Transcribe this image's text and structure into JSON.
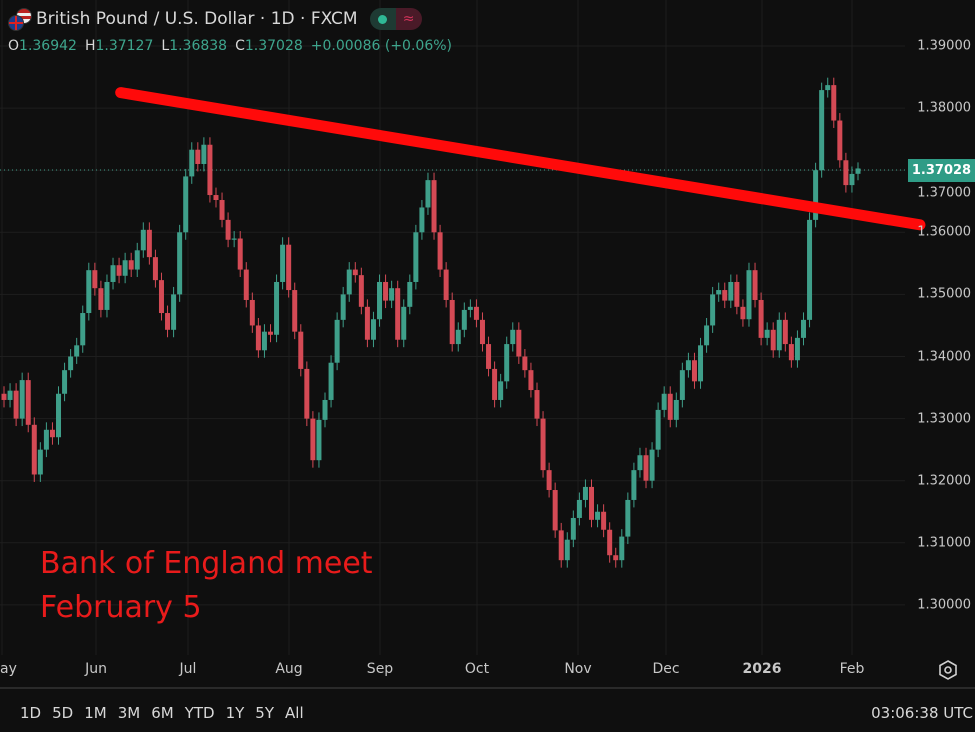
{
  "header": {
    "title": "British Pound / U.S. Dollar · 1D · FXCM",
    "ohlc": {
      "o_label": "O",
      "o": "1.36942",
      "h_label": "H",
      "h": "1.37127",
      "l_label": "L",
      "l": "1.36838",
      "c_label": "C",
      "c": "1.37028",
      "change": "+0.00086 (+0.06%)"
    },
    "market_status_icon": "green-dot",
    "indicator_icon": "wave-icon"
  },
  "annotation": {
    "line1": "Bank of England meet",
    "line2": "February 5"
  },
  "current_price_label": "1.37028",
  "range_buttons": [
    "1D",
    "5D",
    "1M",
    "3M",
    "6M",
    "YTD",
    "1Y",
    "5Y",
    "All"
  ],
  "clock": "03:06:38 UTC",
  "colors": {
    "up": "#3f9f8a",
    "down": "#d44a55",
    "trendline": "#ff0a0a",
    "annotation": "#e81b1b",
    "price_label": "#2f9c86",
    "background": "#0f0f0f"
  },
  "chart_data": {
    "type": "candlestick",
    "symbol": "GBPUSD",
    "interval": "1D",
    "x_ticks": [
      "ay",
      "Jun",
      "Jul",
      "Aug",
      "Sep",
      "Oct",
      "Nov",
      "Dec",
      "2026",
      "Feb"
    ],
    "y_ticks": [
      "1.39000",
      "1.38000",
      "1.37000",
      "1.36000",
      "1.35000",
      "1.34000",
      "1.33000",
      "1.32000",
      "1.31000",
      "1.30000"
    ],
    "ylim": [
      1.2985,
      1.3925
    ],
    "grid": true,
    "closes": [
      1.333,
      1.3345,
      1.33,
      1.3362,
      1.329,
      1.321,
      1.325,
      1.3282,
      1.327,
      1.334,
      1.3378,
      1.34,
      1.3418,
      1.347,
      1.3539,
      1.351,
      1.3475,
      1.352,
      1.3547,
      1.353,
      1.3555,
      1.354,
      1.3571,
      1.3604,
      1.356,
      1.3523,
      1.347,
      1.3443,
      1.35,
      1.36,
      1.369,
      1.3733,
      1.371,
      1.3741,
      1.366,
      1.3652,
      1.362,
      1.3588,
      1.359,
      1.354,
      1.3491,
      1.345,
      1.341,
      1.344,
      1.3435,
      1.352,
      1.358,
      1.3507,
      1.344,
      1.338,
      1.33,
      1.3233,
      1.3298,
      1.333,
      1.339,
      1.3459,
      1.35,
      1.354,
      1.3531,
      1.348,
      1.3427,
      1.346,
      1.352,
      1.349,
      1.351,
      1.3427,
      1.348,
      1.352,
      1.36,
      1.364,
      1.3684,
      1.36,
      1.354,
      1.3491,
      1.342,
      1.3443,
      1.3475,
      1.348,
      1.3459,
      1.342,
      1.338,
      1.333,
      1.336,
      1.342,
      1.3443,
      1.34,
      1.3378,
      1.3346,
      1.33,
      1.3217,
      1.3185,
      1.312,
      1.3072,
      1.3105,
      1.314,
      1.3169,
      1.319,
      1.3137,
      1.315,
      1.3121,
      1.308,
      1.3072,
      1.311,
      1.3169,
      1.3217,
      1.3241,
      1.32,
      1.325,
      1.3314,
      1.334,
      1.3298,
      1.333,
      1.3378,
      1.3394,
      1.336,
      1.3418,
      1.345,
      1.35,
      1.3507,
      1.349,
      1.352,
      1.348,
      1.346,
      1.3539,
      1.3491,
      1.343,
      1.3443,
      1.341,
      1.3459,
      1.342,
      1.3394,
      1.343,
      1.3459,
      1.362,
      1.37,
      1.3829,
      1.3837,
      1.378,
      1.3716,
      1.3676,
      1.3694,
      1.3703
    ],
    "last_candle": {
      "open": 1.36942,
      "high": 1.37127,
      "low": 1.36838,
      "close": 1.37028
    },
    "current_price": 1.37028,
    "trendline": {
      "start_price": 1.3825,
      "end_price": 1.3612,
      "start": "2025-06-09",
      "end": "2026-02-23"
    }
  }
}
